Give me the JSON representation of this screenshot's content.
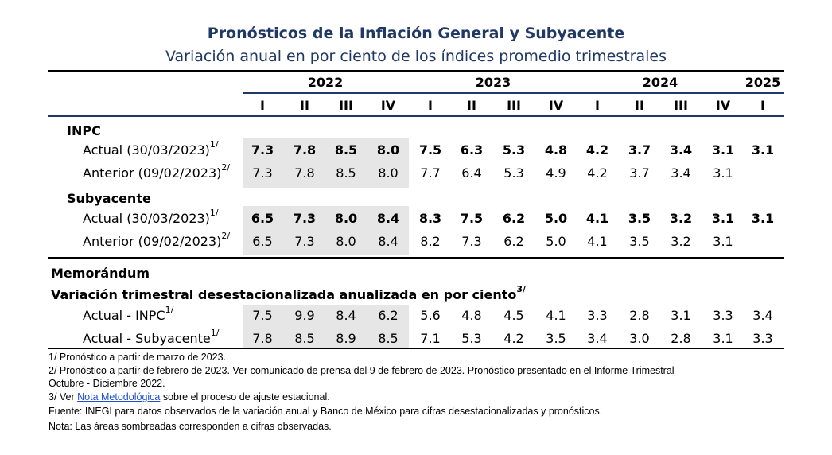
{
  "chart_data": {
    "type": "table",
    "title": "Pronósticos de la Inflación General y Subyacente",
    "subtitle": "Variación anual en por ciento de los índices promedio trimestrales",
    "years": [
      {
        "label": "2022",
        "span": 4
      },
      {
        "label": "2023",
        "span": 4
      },
      {
        "label": "2024",
        "span": 4
      },
      {
        "label": "2025",
        "span": 1
      }
    ],
    "quarters": [
      "I",
      "II",
      "III",
      "IV",
      "I",
      "II",
      "III",
      "IV",
      "I",
      "II",
      "III",
      "IV",
      "I"
    ],
    "shaded_observed_columns": 4,
    "sections": [
      {
        "heading": "INPC",
        "rows": [
          {
            "label": "Actual (30/03/2023)",
            "sup": "1/",
            "bold": true,
            "values": [
              "7.3",
              "7.8",
              "8.5",
              "8.0",
              "7.5",
              "6.3",
              "5.3",
              "4.8",
              "4.2",
              "3.7",
              "3.4",
              "3.1",
              "3.1"
            ]
          },
          {
            "label": "Anterior (09/02/2023)",
            "sup": "2/",
            "bold": false,
            "values": [
              "7.3",
              "7.8",
              "8.5",
              "8.0",
              "7.7",
              "6.4",
              "5.3",
              "4.9",
              "4.2",
              "3.7",
              "3.4",
              "3.1",
              ""
            ]
          }
        ]
      },
      {
        "heading": "Subyacente",
        "rows": [
          {
            "label": "Actual (30/03/2023)",
            "sup": "1/",
            "bold": true,
            "values": [
              "6.5",
              "7.3",
              "8.0",
              "8.4",
              "8.3",
              "7.5",
              "6.2",
              "5.0",
              "4.1",
              "3.5",
              "3.2",
              "3.1",
              "3.1"
            ]
          },
          {
            "label": "Anterior (09/02/2023)",
            "sup": "2/",
            "bold": false,
            "values": [
              "6.5",
              "7.3",
              "8.0",
              "8.4",
              "8.2",
              "7.3",
              "6.2",
              "5.0",
              "4.1",
              "3.5",
              "3.2",
              "3.1",
              ""
            ]
          }
        ]
      }
    ],
    "memo": {
      "heading": "Memorándum",
      "subheading": "Variación trimestral desestacionalizada anualizada en por ciento",
      "subheading_sup": "3/",
      "rows": [
        {
          "label": "Actual - INPC",
          "sup": "1/",
          "values": [
            "7.5",
            "9.9",
            "8.4",
            "6.2",
            "5.6",
            "4.8",
            "4.5",
            "4.1",
            "3.3",
            "2.8",
            "3.1",
            "3.3",
            "3.4"
          ]
        },
        {
          "label": "Actual - Subyacente",
          "sup": "1/",
          "values": [
            "7.8",
            "8.5",
            "8.9",
            "8.5",
            "7.1",
            "5.3",
            "4.2",
            "3.5",
            "3.4",
            "3.0",
            "2.8",
            "3.1",
            "3.3"
          ]
        }
      ]
    }
  },
  "notes": {
    "n1": "1/ Pronóstico a partir de marzo de 2023.",
    "n2": "2/ Pronóstico a partir de febrero de 2023. Ver comunicado de prensa del 9 de febrero de 2023. Pronóstico presentado en el Informe Trimestral",
    "n2b": "Octubre - Diciembre 2022.",
    "n3_pre": "3/ Ver ",
    "n3_link": "Nota Metodológica",
    "n3_post": " sobre el proceso de ajuste estacional.",
    "source": "Fuente: INEGI para datos observados de la variación anual y Banco de México para cifras desestacionalizadas y pronósticos.",
    "nota": "Nota: Las áreas sombreadas corresponden a cifras observadas."
  }
}
